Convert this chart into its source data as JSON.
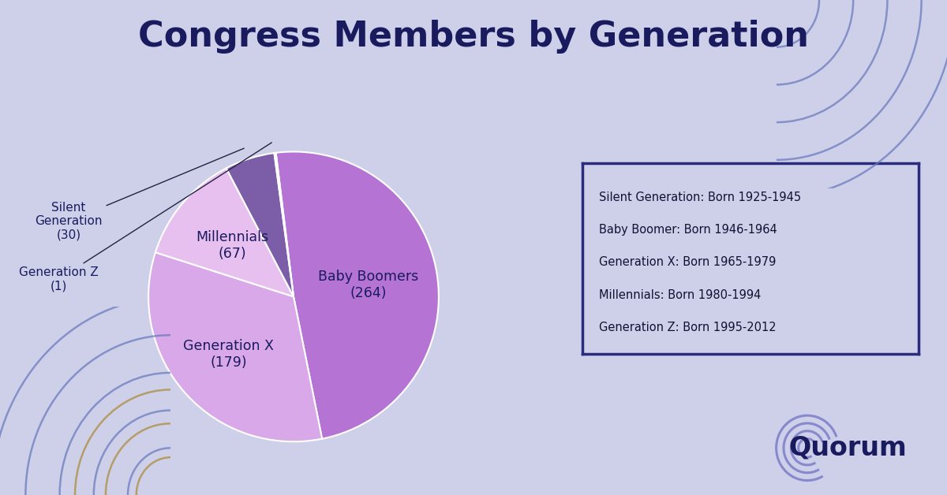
{
  "title": "Congress Members by Generation",
  "background_color": "#cdd0e8",
  "slices": [
    {
      "label": "Baby Boomers",
      "value": 264,
      "color": "#b574d4"
    },
    {
      "label": "Generation X",
      "value": 179,
      "color": "#d9a8e8"
    },
    {
      "label": "Millennials",
      "value": 67,
      "color": "#e8c0f0"
    },
    {
      "label": "Silent Generation",
      "value": 30,
      "color": "#7b5ea7"
    },
    {
      "label": "Generation Z",
      "value": 1,
      "color": "#9090cc"
    }
  ],
  "legend_lines": [
    "Silent Generation: Born 1925-1945",
    "Baby Boomer: Born 1946-1964",
    "Generation X: Born 1965-1979",
    "Millennials: Born 1980-1994",
    "Generation Z: Born 1995-2012"
  ],
  "legend_box_color": "#2a2a7e",
  "title_color": "#1a1a5e",
  "label_color": "#1a1a5e",
  "startangle": 97
}
